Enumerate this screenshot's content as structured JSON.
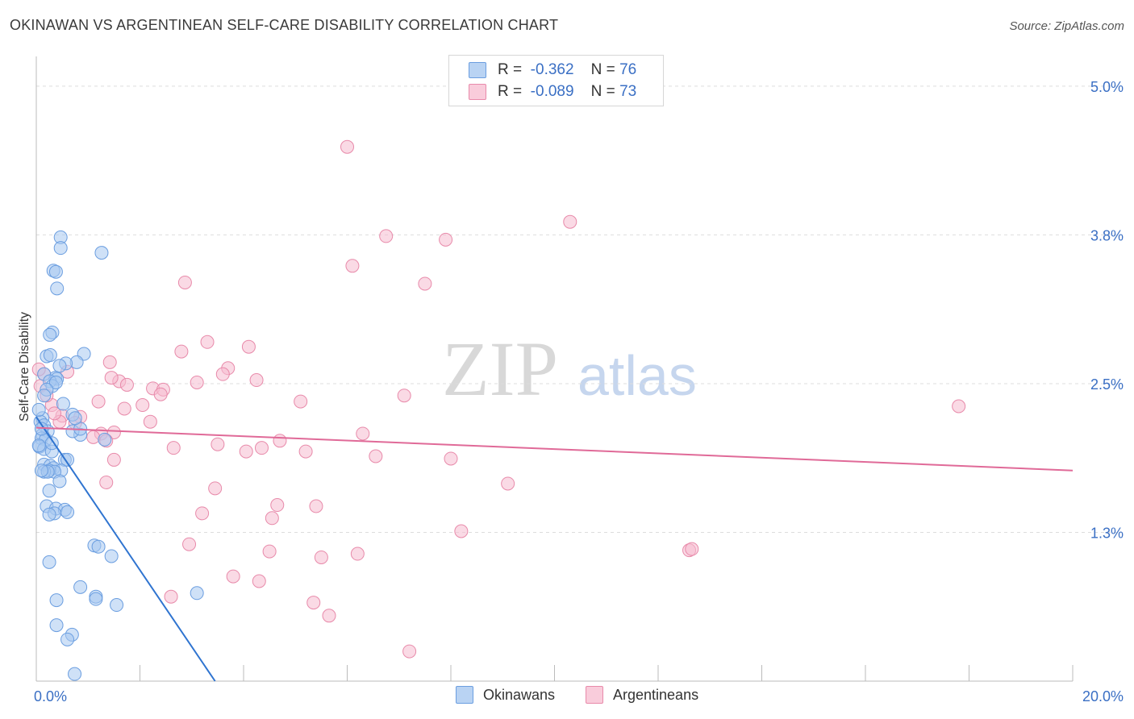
{
  "title": "OKINAWAN VS ARGENTINEAN SELF-CARE DISABILITY CORRELATION CHART",
  "source": "Source: ZipAtlas.com",
  "watermark": {
    "zip": "ZIP",
    "atlas": "atlas"
  },
  "colors": {
    "blue_fill": "#a8c8f0",
    "blue_stroke": "#6b9ee0",
    "blue_line": "#2f74d0",
    "pink_fill": "#f6bcd0",
    "pink_stroke": "#e88aaa",
    "pink_line": "#e06a98",
    "axis_label": "#3a6fc4",
    "grid": "#dddddd"
  },
  "legend": {
    "rows": [
      {
        "series": "Okinawans",
        "r_label": "R =",
        "r_value": "-0.362",
        "n_label": "N =",
        "n_value": "76"
      },
      {
        "series": "Argentineans",
        "r_label": "R =",
        "r_value": "-0.089",
        "n_label": "N =",
        "n_value": "73"
      }
    ]
  },
  "bottom_legend": [
    "Okinawans",
    "Argentineans"
  ],
  "chart_data": {
    "type": "scatter",
    "title": "OKINAWAN VS ARGENTINEAN SELF-CARE DISABILITY CORRELATION CHART",
    "xlabel": "",
    "ylabel": "Self-Care Disability",
    "xlim": [
      0,
      20
    ],
    "ylim": [
      0,
      5.25
    ],
    "x_tick_labels": [
      {
        "value": 0,
        "label": "0.0%"
      },
      {
        "value": 20,
        "label": "20.0%"
      }
    ],
    "y_tick_labels": [
      {
        "value": 1.25,
        "label": "1.3%"
      },
      {
        "value": 2.5,
        "label": "2.5%"
      },
      {
        "value": 3.75,
        "label": "3.8%"
      },
      {
        "value": 5.0,
        "label": "5.0%"
      }
    ],
    "series": [
      {
        "name": "Okinawans",
        "r": -0.362,
        "n": 76,
        "trend": {
          "x0": 0.0,
          "y0": 2.22,
          "x1": 3.45,
          "y1": 0.0
        },
        "points": [
          [
            0.47,
            3.73
          ],
          [
            0.47,
            3.64
          ],
          [
            1.26,
            3.6
          ],
          [
            0.33,
            3.45
          ],
          [
            0.38,
            3.44
          ],
          [
            0.4,
            3.3
          ],
          [
            0.31,
            2.93
          ],
          [
            0.26,
            2.91
          ],
          [
            0.92,
            2.75
          ],
          [
            0.2,
            2.73
          ],
          [
            0.27,
            2.74
          ],
          [
            0.78,
            2.68
          ],
          [
            0.57,
            2.67
          ],
          [
            0.45,
            2.65
          ],
          [
            0.37,
            2.55
          ],
          [
            0.15,
            2.58
          ],
          [
            0.4,
            2.54
          ],
          [
            0.26,
            2.52
          ],
          [
            0.31,
            2.48
          ],
          [
            0.38,
            2.51
          ],
          [
            0.2,
            2.45
          ],
          [
            0.15,
            2.4
          ],
          [
            0.7,
            2.24
          ],
          [
            0.12,
            2.21
          ],
          [
            0.08,
            2.18
          ],
          [
            0.15,
            2.15
          ],
          [
            0.22,
            2.1
          ],
          [
            0.12,
            2.07
          ],
          [
            0.1,
            2.04
          ],
          [
            0.18,
            2.03
          ],
          [
            0.06,
            1.97
          ],
          [
            0.15,
            1.95
          ],
          [
            0.05,
            1.98
          ],
          [
            0.3,
            1.93
          ],
          [
            0.55,
            1.86
          ],
          [
            0.6,
            1.86
          ],
          [
            0.15,
            1.82
          ],
          [
            0.27,
            1.81
          ],
          [
            0.33,
            1.79
          ],
          [
            0.48,
            1.77
          ],
          [
            0.25,
            1.77
          ],
          [
            0.35,
            1.76
          ],
          [
            0.15,
            1.76
          ],
          [
            0.22,
            1.76
          ],
          [
            0.1,
            1.77
          ],
          [
            0.85,
            2.07
          ],
          [
            0.7,
            2.1
          ],
          [
            0.85,
            2.12
          ],
          [
            1.32,
            2.03
          ],
          [
            0.45,
            1.68
          ],
          [
            0.25,
            1.6
          ],
          [
            0.2,
            1.47
          ],
          [
            0.38,
            1.45
          ],
          [
            0.55,
            1.44
          ],
          [
            0.6,
            1.42
          ],
          [
            0.35,
            1.41
          ],
          [
            0.25,
            1.4
          ],
          [
            1.12,
            1.14
          ],
          [
            1.2,
            1.13
          ],
          [
            1.45,
            1.05
          ],
          [
            0.25,
            1.0
          ],
          [
            0.85,
            0.79
          ],
          [
            1.15,
            0.71
          ],
          [
            1.15,
            0.69
          ],
          [
            0.39,
            0.68
          ],
          [
            3.1,
            0.74
          ],
          [
            1.55,
            0.64
          ],
          [
            0.39,
            0.47
          ],
          [
            0.69,
            0.39
          ],
          [
            0.6,
            0.35
          ],
          [
            0.74,
            0.06
          ],
          [
            0.3,
            2.0
          ],
          [
            0.1,
            2.12
          ],
          [
            0.52,
            2.33
          ],
          [
            0.75,
            2.21
          ],
          [
            0.05,
            2.28
          ]
        ]
      },
      {
        "name": "Argentineans",
        "r": -0.089,
        "n": 73,
        "trend": {
          "x0": 0.0,
          "y0": 2.13,
          "x1": 20.0,
          "y1": 1.77
        },
        "points": [
          [
            6.0,
            4.49
          ],
          [
            10.3,
            3.86
          ],
          [
            6.75,
            3.74
          ],
          [
            7.9,
            3.71
          ],
          [
            6.1,
            3.49
          ],
          [
            2.87,
            3.35
          ],
          [
            7.5,
            3.34
          ],
          [
            3.3,
            2.85
          ],
          [
            4.1,
            2.81
          ],
          [
            2.8,
            2.77
          ],
          [
            1.42,
            2.68
          ],
          [
            3.7,
            2.63
          ],
          [
            0.6,
            2.6
          ],
          [
            3.6,
            2.58
          ],
          [
            4.25,
            2.53
          ],
          [
            1.6,
            2.52
          ],
          [
            3.1,
            2.51
          ],
          [
            1.75,
            2.49
          ],
          [
            2.25,
            2.46
          ],
          [
            2.45,
            2.45
          ],
          [
            2.4,
            2.41
          ],
          [
            0.15,
            2.58
          ],
          [
            0.05,
            2.62
          ],
          [
            0.08,
            2.48
          ],
          [
            7.1,
            2.4
          ],
          [
            5.1,
            2.35
          ],
          [
            1.2,
            2.35
          ],
          [
            2.05,
            2.32
          ],
          [
            0.3,
            2.32
          ],
          [
            1.7,
            2.29
          ],
          [
            0.5,
            2.23
          ],
          [
            0.45,
            2.18
          ],
          [
            0.85,
            2.22
          ],
          [
            0.75,
            2.17
          ],
          [
            2.2,
            2.18
          ],
          [
            1.5,
            2.09
          ],
          [
            1.25,
            2.08
          ],
          [
            1.1,
            2.05
          ],
          [
            6.3,
            2.08
          ],
          [
            1.35,
            2.02
          ],
          [
            4.7,
            2.02
          ],
          [
            3.5,
            1.99
          ],
          [
            2.65,
            1.96
          ],
          [
            4.35,
            1.96
          ],
          [
            4.05,
            1.93
          ],
          [
            5.2,
            1.93
          ],
          [
            6.55,
            1.89
          ],
          [
            8.0,
            1.87
          ],
          [
            1.5,
            1.86
          ],
          [
            9.1,
            1.66
          ],
          [
            1.35,
            1.67
          ],
          [
            17.8,
            2.31
          ],
          [
            3.45,
            1.62
          ],
          [
            4.65,
            1.48
          ],
          [
            5.4,
            1.47
          ],
          [
            3.2,
            1.41
          ],
          [
            4.55,
            1.37
          ],
          [
            8.2,
            1.26
          ],
          [
            2.95,
            1.15
          ],
          [
            4.5,
            1.09
          ],
          [
            5.5,
            1.04
          ],
          [
            6.2,
            1.07
          ],
          [
            12.6,
            1.1
          ],
          [
            12.65,
            1.11
          ],
          [
            3.8,
            0.88
          ],
          [
            4.3,
            0.84
          ],
          [
            2.6,
            0.71
          ],
          [
            5.35,
            0.66
          ],
          [
            5.65,
            0.55
          ],
          [
            7.2,
            0.25
          ],
          [
            0.35,
            2.25
          ],
          [
            0.2,
            2.4
          ],
          [
            1.45,
            2.55
          ]
        ]
      }
    ]
  }
}
